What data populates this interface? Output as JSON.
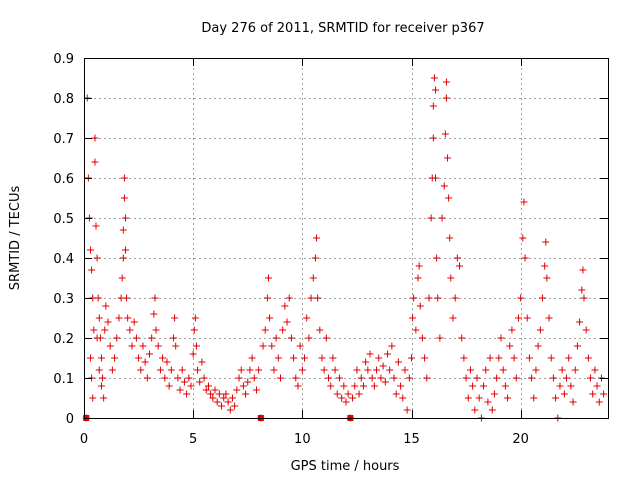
{
  "chart_data": {
    "type": "scatter",
    "title": "Day 276 of 2011, SRMTID for receiver p367",
    "xlabel": "GPS time / hours",
    "ylabel": "SRMTID / TECUs",
    "xlim": [
      0,
      24
    ],
    "ylim": [
      0,
      0.9
    ],
    "xticks": [
      0,
      5,
      10,
      15,
      20
    ],
    "xtick_labels": [
      "0",
      "5",
      "10",
      "15",
      "20"
    ],
    "yticks": [
      0,
      0.1,
      0.2,
      0.3,
      0.4,
      0.5,
      0.6,
      0.7,
      0.8,
      0.9
    ],
    "ytick_labels": [
      "0",
      "0.1",
      "0.2",
      "0.3",
      "0.4",
      "0.5",
      "0.6",
      "0.7",
      "0.8",
      "0.9"
    ],
    "grid": true,
    "marker": "+",
    "color": "#e00000",
    "series": [
      {
        "name": "SRMTID",
        "points": [
          [
            0.1,
            0.0
          ],
          [
            0.15,
            0.8
          ],
          [
            0.2,
            0.6
          ],
          [
            0.25,
            0.5
          ],
          [
            0.3,
            0.42
          ],
          [
            0.35,
            0.37
          ],
          [
            0.4,
            0.3
          ],
          [
            0.45,
            0.22
          ],
          [
            0.5,
            0.7
          ],
          [
            0.5,
            0.64
          ],
          [
            0.55,
            0.48
          ],
          [
            0.6,
            0.4
          ],
          [
            0.65,
            0.3
          ],
          [
            0.7,
            0.25
          ],
          [
            0.75,
            0.2
          ],
          [
            0.8,
            0.15
          ],
          [
            0.85,
            0.1
          ],
          [
            0.9,
            0.05
          ],
          [
            0.3,
            0.15
          ],
          [
            0.35,
            0.1
          ],
          [
            0.4,
            0.05
          ],
          [
            0.6,
            0.2
          ],
          [
            0.7,
            0.12
          ],
          [
            0.8,
            0.08
          ],
          [
            0.95,
            0.22
          ],
          [
            1.0,
            0.28
          ],
          [
            1.1,
            0.24
          ],
          [
            1.2,
            0.18
          ],
          [
            1.3,
            0.12
          ],
          [
            1.4,
            0.15
          ],
          [
            1.5,
            0.2
          ],
          [
            1.6,
            0.25
          ],
          [
            1.7,
            0.3
          ],
          [
            1.75,
            0.35
          ],
          [
            1.8,
            0.4
          ],
          [
            1.8,
            0.47
          ],
          [
            1.85,
            0.55
          ],
          [
            1.85,
            0.6
          ],
          [
            1.9,
            0.5
          ],
          [
            1.9,
            0.42
          ],
          [
            1.95,
            0.3
          ],
          [
            2.0,
            0.25
          ],
          [
            2.1,
            0.22
          ],
          [
            2.2,
            0.18
          ],
          [
            2.3,
            0.24
          ],
          [
            2.4,
            0.2
          ],
          [
            2.5,
            0.15
          ],
          [
            2.6,
            0.12
          ],
          [
            2.7,
            0.18
          ],
          [
            2.8,
            0.14
          ],
          [
            2.9,
            0.1
          ],
          [
            3.0,
            0.16
          ],
          [
            3.1,
            0.2
          ],
          [
            3.2,
            0.26
          ],
          [
            3.25,
            0.3
          ],
          [
            3.3,
            0.22
          ],
          [
            3.4,
            0.18
          ],
          [
            3.5,
            0.12
          ],
          [
            3.6,
            0.15
          ],
          [
            3.7,
            0.1
          ],
          [
            3.8,
            0.14
          ],
          [
            3.9,
            0.08
          ],
          [
            4.0,
            0.12
          ],
          [
            4.1,
            0.2
          ],
          [
            4.15,
            0.25
          ],
          [
            4.2,
            0.18
          ],
          [
            4.3,
            0.1
          ],
          [
            4.4,
            0.07
          ],
          [
            4.5,
            0.12
          ],
          [
            4.6,
            0.09
          ],
          [
            4.7,
            0.06
          ],
          [
            4.8,
            0.1
          ],
          [
            4.9,
            0.08
          ],
          [
            5.0,
            0.16
          ],
          [
            5.05,
            0.22
          ],
          [
            5.1,
            0.25
          ],
          [
            5.15,
            0.18
          ],
          [
            5.2,
            0.12
          ],
          [
            5.3,
            0.09
          ],
          [
            5.4,
            0.14
          ],
          [
            5.5,
            0.1
          ],
          [
            5.6,
            0.07
          ],
          [
            5.7,
            0.08
          ],
          [
            5.8,
            0.06
          ],
          [
            5.9,
            0.05
          ],
          [
            6.0,
            0.07
          ],
          [
            6.1,
            0.04
          ],
          [
            6.2,
            0.06
          ],
          [
            6.3,
            0.03
          ],
          [
            6.4,
            0.05
          ],
          [
            6.5,
            0.06
          ],
          [
            6.6,
            0.04
          ],
          [
            6.7,
            0.02
          ],
          [
            6.8,
            0.05
          ],
          [
            6.9,
            0.03
          ],
          [
            7.0,
            0.07
          ],
          [
            7.1,
            0.1
          ],
          [
            7.2,
            0.12
          ],
          [
            7.3,
            0.08
          ],
          [
            7.4,
            0.06
          ],
          [
            7.5,
            0.09
          ],
          [
            7.6,
            0.12
          ],
          [
            7.7,
            0.15
          ],
          [
            7.8,
            0.1
          ],
          [
            7.9,
            0.07
          ],
          [
            8.0,
            0.12
          ],
          [
            8.1,
            0.0
          ],
          [
            8.2,
            0.18
          ],
          [
            8.3,
            0.22
          ],
          [
            8.4,
            0.3
          ],
          [
            8.45,
            0.35
          ],
          [
            8.5,
            0.25
          ],
          [
            8.6,
            0.18
          ],
          [
            8.7,
            0.12
          ],
          [
            8.8,
            0.2
          ],
          [
            8.9,
            0.15
          ],
          [
            9.0,
            0.1
          ],
          [
            9.1,
            0.22
          ],
          [
            9.2,
            0.28
          ],
          [
            9.3,
            0.24
          ],
          [
            9.4,
            0.3
          ],
          [
            9.5,
            0.2
          ],
          [
            9.6,
            0.15
          ],
          [
            9.7,
            0.1
          ],
          [
            9.8,
            0.08
          ],
          [
            9.9,
            0.18
          ],
          [
            10.0,
            0.12
          ],
          [
            10.1,
            0.15
          ],
          [
            10.2,
            0.25
          ],
          [
            10.3,
            0.2
          ],
          [
            10.4,
            0.3
          ],
          [
            10.5,
            0.35
          ],
          [
            10.6,
            0.4
          ],
          [
            10.65,
            0.45
          ],
          [
            10.7,
            0.3
          ],
          [
            10.8,
            0.22
          ],
          [
            10.9,
            0.15
          ],
          [
            11.0,
            0.12
          ],
          [
            11.1,
            0.2
          ],
          [
            11.2,
            0.1
          ],
          [
            11.3,
            0.08
          ],
          [
            11.4,
            0.15
          ],
          [
            11.5,
            0.12
          ],
          [
            11.6,
            0.06
          ],
          [
            11.7,
            0.1
          ],
          [
            11.8,
            0.05
          ],
          [
            11.9,
            0.08
          ],
          [
            12.0,
            0.04
          ],
          [
            12.1,
            0.06
          ],
          [
            12.2,
            0.0
          ],
          [
            12.3,
            0.05
          ],
          [
            12.4,
            0.08
          ],
          [
            12.5,
            0.12
          ],
          [
            12.6,
            0.06
          ],
          [
            12.7,
            0.1
          ],
          [
            12.8,
            0.08
          ],
          [
            12.9,
            0.14
          ],
          [
            13.0,
            0.12
          ],
          [
            13.1,
            0.16
          ],
          [
            13.2,
            0.1
          ],
          [
            13.3,
            0.08
          ],
          [
            13.4,
            0.12
          ],
          [
            13.5,
            0.15
          ],
          [
            13.6,
            0.1
          ],
          [
            13.7,
            0.13
          ],
          [
            13.8,
            0.09
          ],
          [
            13.9,
            0.16
          ],
          [
            14.0,
            0.12
          ],
          [
            14.1,
            0.18
          ],
          [
            14.2,
            0.1
          ],
          [
            14.3,
            0.06
          ],
          [
            14.4,
            0.14
          ],
          [
            14.5,
            0.08
          ],
          [
            14.6,
            0.05
          ],
          [
            14.7,
            0.12
          ],
          [
            14.8,
            0.02
          ],
          [
            14.9,
            0.1
          ],
          [
            15.0,
            0.15
          ],
          [
            15.05,
            0.25
          ],
          [
            15.1,
            0.3
          ],
          [
            15.2,
            0.22
          ],
          [
            15.3,
            0.35
          ],
          [
            15.35,
            0.38
          ],
          [
            15.4,
            0.28
          ],
          [
            15.5,
            0.2
          ],
          [
            15.6,
            0.15
          ],
          [
            15.7,
            0.1
          ],
          [
            15.8,
            0.3
          ],
          [
            15.9,
            0.5
          ],
          [
            15.95,
            0.6
          ],
          [
            16.0,
            0.7
          ],
          [
            16.0,
            0.78
          ],
          [
            16.05,
            0.85
          ],
          [
            16.1,
            0.82
          ],
          [
            16.1,
            0.6
          ],
          [
            16.15,
            0.4
          ],
          [
            16.2,
            0.3
          ],
          [
            16.3,
            0.2
          ],
          [
            16.4,
            0.5
          ],
          [
            16.5,
            0.58
          ],
          [
            16.55,
            0.71
          ],
          [
            16.6,
            0.84
          ],
          [
            16.6,
            0.8
          ],
          [
            16.65,
            0.65
          ],
          [
            16.7,
            0.55
          ],
          [
            16.75,
            0.45
          ],
          [
            16.8,
            0.35
          ],
          [
            16.9,
            0.25
          ],
          [
            17.0,
            0.3
          ],
          [
            17.1,
            0.4
          ],
          [
            17.2,
            0.38
          ],
          [
            17.3,
            0.2
          ],
          [
            17.4,
            0.15
          ],
          [
            17.5,
            0.1
          ],
          [
            17.6,
            0.05
          ],
          [
            17.7,
            0.12
          ],
          [
            17.8,
            0.08
          ],
          [
            17.9,
            0.02
          ],
          [
            18.0,
            0.1
          ],
          [
            18.1,
            0.05
          ],
          [
            18.2,
            0.0
          ],
          [
            18.3,
            0.08
          ],
          [
            18.4,
            0.12
          ],
          [
            18.5,
            0.04
          ],
          [
            18.6,
            0.15
          ],
          [
            18.7,
            0.02
          ],
          [
            18.8,
            0.06
          ],
          [
            18.9,
            0.1
          ],
          [
            19.0,
            0.15
          ],
          [
            19.1,
            0.2
          ],
          [
            19.2,
            0.12
          ],
          [
            19.3,
            0.08
          ],
          [
            19.4,
            0.05
          ],
          [
            19.5,
            0.18
          ],
          [
            19.6,
            0.22
          ],
          [
            19.7,
            0.15
          ],
          [
            19.8,
            0.1
          ],
          [
            19.9,
            0.25
          ],
          [
            20.0,
            0.3
          ],
          [
            20.1,
            0.45
          ],
          [
            20.15,
            0.54
          ],
          [
            20.2,
            0.4
          ],
          [
            20.3,
            0.25
          ],
          [
            20.4,
            0.15
          ],
          [
            20.5,
            0.1
          ],
          [
            20.6,
            0.05
          ],
          [
            20.7,
            0.12
          ],
          [
            20.8,
            0.18
          ],
          [
            20.9,
            0.22
          ],
          [
            21.0,
            0.3
          ],
          [
            21.1,
            0.38
          ],
          [
            21.15,
            0.44
          ],
          [
            21.2,
            0.35
          ],
          [
            21.3,
            0.25
          ],
          [
            21.4,
            0.15
          ],
          [
            21.5,
            0.1
          ],
          [
            21.6,
            0.05
          ],
          [
            21.7,
            0.0
          ],
          [
            21.8,
            0.08
          ],
          [
            21.9,
            0.12
          ],
          [
            22.0,
            0.06
          ],
          [
            22.1,
            0.1
          ],
          [
            22.2,
            0.15
          ],
          [
            22.3,
            0.08
          ],
          [
            22.4,
            0.04
          ],
          [
            22.5,
            0.12
          ],
          [
            22.6,
            0.18
          ],
          [
            22.7,
            0.24
          ],
          [
            22.8,
            0.32
          ],
          [
            22.85,
            0.37
          ],
          [
            22.9,
            0.3
          ],
          [
            23.0,
            0.22
          ],
          [
            23.1,
            0.15
          ],
          [
            23.2,
            0.1
          ],
          [
            23.3,
            0.06
          ],
          [
            23.4,
            0.12
          ],
          [
            23.5,
            0.08
          ],
          [
            23.6,
            0.04
          ],
          [
            23.7,
            0.1
          ],
          [
            23.8,
            0.06
          ]
        ]
      }
    ],
    "zero_markers": [
      0.1,
      8.1,
      12.2
    ]
  }
}
